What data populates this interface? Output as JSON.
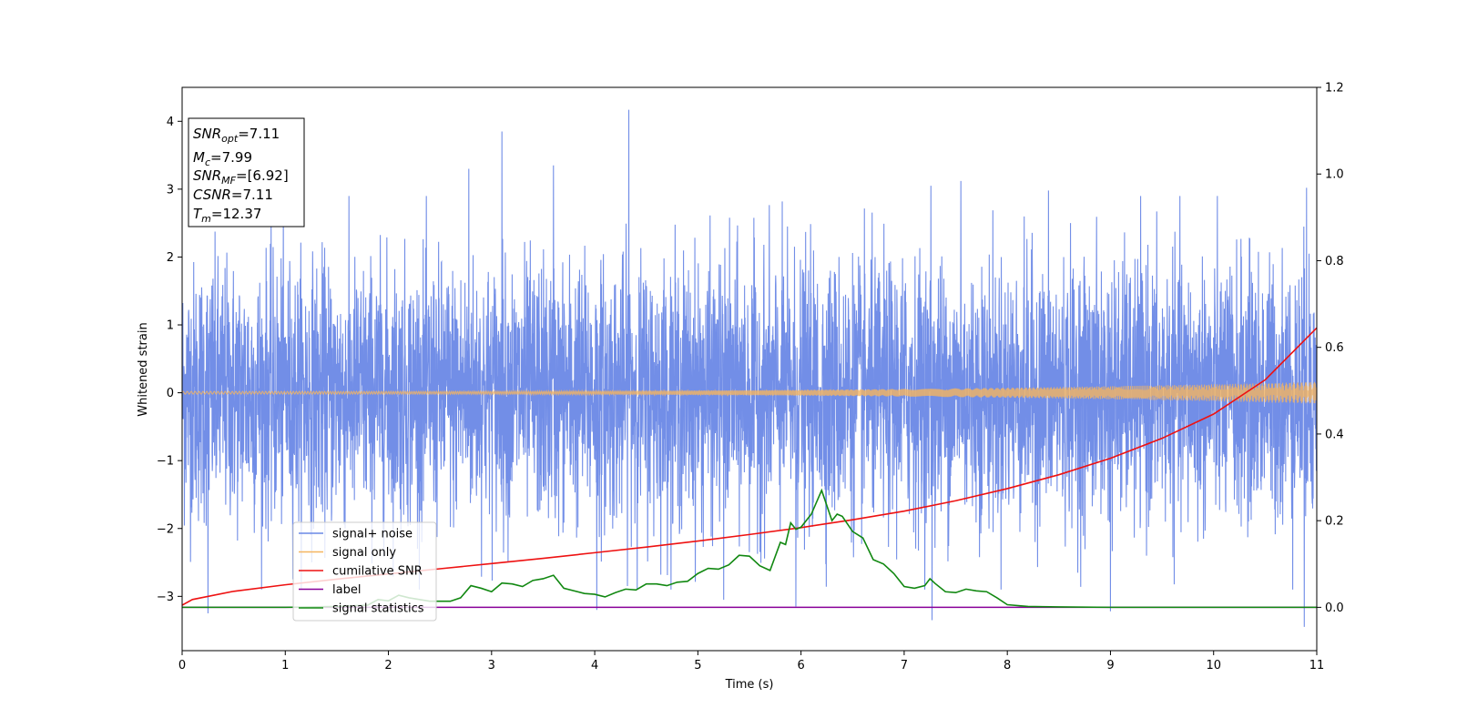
{
  "chart_data": {
    "type": "line",
    "xlabel": "Time (s)",
    "ylabel": "Whitened strain",
    "xlim": [
      0,
      11
    ],
    "ylim_left": [
      -3.8,
      4.5
    ],
    "ylim_right": [
      -0.1,
      1.2
    ],
    "x_ticks": [
      0,
      1,
      2,
      3,
      4,
      5,
      6,
      7,
      8,
      9,
      10,
      11
    ],
    "y_ticks_left": [
      -3,
      -2,
      -1,
      0,
      1,
      2,
      3,
      4
    ],
    "y_ticks_left_labels": [
      "−3",
      "−2",
      "−1",
      "0",
      "1",
      "2",
      "3",
      "4"
    ],
    "y_ticks_right": [
      0.0,
      0.2,
      0.4,
      0.6,
      0.8,
      1.0,
      1.2
    ],
    "y_ticks_right_labels": [
      "0.0",
      "0.2",
      "0.4",
      "0.6",
      "0.8",
      "1.0",
      "1.2"
    ],
    "legend_position": "lower-left",
    "series": [
      {
        "name": "signal+ noise",
        "axis": "left",
        "color": "#6a88e6",
        "kind": "noise",
        "noise_std": 1.0,
        "spikes": [
          {
            "x": 4.33,
            "y": 4.17
          },
          {
            "x": 3.1,
            "y": 3.85
          },
          {
            "x": 2.78,
            "y": 3.3
          },
          {
            "x": 3.6,
            "y": 3.35
          },
          {
            "x": 7.26,
            "y": 3.05
          },
          {
            "x": 10.9,
            "y": 3.02
          },
          {
            "x": 7.55,
            "y": 3.12
          },
          {
            "x": 7.27,
            "y": -3.35
          },
          {
            "x": 0.25,
            "y": -3.25
          },
          {
            "x": 10.88,
            "y": -3.45
          },
          {
            "x": 5.95,
            "y": -3.15
          },
          {
            "x": 4.02,
            "y": -3.2
          },
          {
            "x": 9.0,
            "y": -3.22
          },
          {
            "x": 5.25,
            "y": -3.05
          },
          {
            "x": 8.4,
            "y": 2.98
          }
        ]
      },
      {
        "name": "signal only",
        "axis": "left",
        "color": "#f5b560",
        "kind": "chirp",
        "amplitude_start": 0.02,
        "amplitude_end": 0.16
      },
      {
        "name": "cumilative SNR",
        "axis": "right",
        "color": "#ee1111",
        "x": [
          0,
          0.1,
          0.5,
          1,
          1.5,
          2,
          2.5,
          3,
          3.5,
          4,
          4.5,
          5,
          5.5,
          6,
          6.5,
          7,
          7.5,
          8,
          8.5,
          9,
          9.5,
          10,
          10.5,
          11
        ],
        "y": [
          0.005,
          0.018,
          0.037,
          0.052,
          0.065,
          0.077,
          0.089,
          0.101,
          0.113,
          0.126,
          0.139,
          0.153,
          0.168,
          0.184,
          0.202,
          0.222,
          0.246,
          0.274,
          0.306,
          0.344,
          0.39,
          0.446,
          0.525,
          0.645
        ]
      },
      {
        "name": "label",
        "axis": "right",
        "color": "#880099",
        "x": [
          0,
          11
        ],
        "y": [
          0.0,
          0.0
        ]
      },
      {
        "name": "signal statistics",
        "axis": "right",
        "color": "#118811",
        "x": [
          0,
          0.5,
          1,
          1.5,
          1.8,
          1.9,
          2.0,
          2.1,
          2.2,
          2.4,
          2.6,
          2.7,
          2.8,
          2.9,
          3.0,
          3.1,
          3.2,
          3.3,
          3.4,
          3.5,
          3.6,
          3.7,
          3.9,
          4.0,
          4.1,
          4.2,
          4.3,
          4.4,
          4.5,
          4.6,
          4.7,
          4.8,
          4.9,
          5.0,
          5.1,
          5.2,
          5.3,
          5.4,
          5.5,
          5.6,
          5.7,
          5.8,
          5.85,
          5.9,
          5.95,
          6.0,
          6.1,
          6.2,
          6.3,
          6.35,
          6.4,
          6.5,
          6.6,
          6.7,
          6.8,
          6.9,
          7.0,
          7.1,
          7.2,
          7.25,
          7.3,
          7.4,
          7.5,
          7.6,
          7.7,
          7.8,
          7.9,
          8.0,
          8.2,
          8.5,
          9.0,
          9.5,
          10,
          10.5,
          11
        ],
        "y": [
          0.0,
          0.0,
          0.0,
          0.002,
          0.005,
          0.018,
          0.015,
          0.028,
          0.022,
          0.014,
          0.014,
          0.022,
          0.05,
          0.044,
          0.036,
          0.056,
          0.054,
          0.048,
          0.062,
          0.066,
          0.074,
          0.044,
          0.032,
          0.03,
          0.024,
          0.034,
          0.042,
          0.04,
          0.054,
          0.054,
          0.05,
          0.058,
          0.06,
          0.078,
          0.09,
          0.088,
          0.098,
          0.12,
          0.118,
          0.096,
          0.085,
          0.15,
          0.145,
          0.195,
          0.18,
          0.185,
          0.215,
          0.27,
          0.2,
          0.215,
          0.21,
          0.175,
          0.16,
          0.11,
          0.1,
          0.078,
          0.048,
          0.044,
          0.05,
          0.066,
          0.055,
          0.036,
          0.034,
          0.042,
          0.038,
          0.036,
          0.022,
          0.006,
          0.002,
          0.001,
          0.0,
          0.0,
          0.0,
          0.0,
          0.0
        ]
      }
    ],
    "annotation": {
      "lines": [
        {
          "base": "SNR",
          "sub": "opt",
          "value": "=7.11"
        },
        {
          "base": "M",
          "sub": "c",
          "value": "=7.99"
        },
        {
          "base": "SNR",
          "sub": "MF",
          "value": "=[6.92]"
        },
        {
          "base": "CSNR",
          "sub": "",
          "value": "=7.11"
        },
        {
          "base": "T",
          "sub": "m",
          "value": "=12.37"
        }
      ]
    }
  }
}
